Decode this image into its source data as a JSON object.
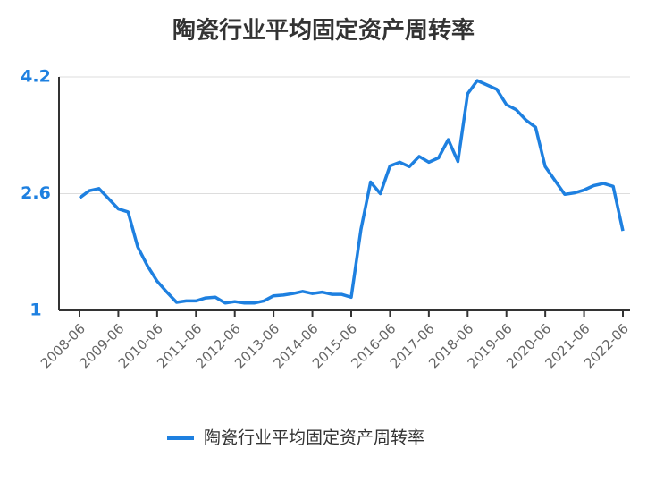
{
  "chart_data": {
    "type": "line",
    "title": "陶瓷行业平均固定资产周转率",
    "categories": [
      "2008-06",
      null,
      null,
      null,
      "2009-06",
      null,
      null,
      null,
      "2010-06",
      null,
      null,
      null,
      "2011-06",
      null,
      null,
      null,
      "2012-06",
      null,
      null,
      null,
      "2013-06",
      null,
      null,
      null,
      "2014-06",
      null,
      null,
      null,
      "2015-06",
      null,
      null,
      null,
      "2016-06",
      null,
      null,
      null,
      "2017-06",
      null,
      null,
      null,
      "2018-06",
      null,
      null,
      null,
      "2019-06",
      null,
      null,
      null,
      "2020-06",
      null,
      null,
      null,
      "2021-06",
      null,
      null,
      null,
      "2022-06"
    ],
    "series": [
      {
        "name": "陶瓷行业平均固定资产周转率",
        "color": "#1e80e0",
        "values": [
          2.54,
          2.64,
          2.67,
          2.53,
          2.39,
          2.35,
          1.87,
          1.61,
          1.4,
          1.25,
          1.11,
          1.13,
          1.13,
          1.17,
          1.18,
          1.1,
          1.12,
          1.1,
          1.1,
          1.13,
          1.2,
          1.21,
          1.23,
          1.26,
          1.23,
          1.25,
          1.22,
          1.22,
          1.18,
          2.11,
          2.76,
          2.6,
          2.98,
          3.03,
          2.97,
          3.11,
          3.03,
          3.09,
          3.34,
          3.04,
          3.97,
          4.15,
          4.09,
          4.03,
          3.82,
          3.75,
          3.61,
          3.51,
          2.97,
          2.78,
          2.59,
          2.61,
          2.65,
          2.71,
          2.74,
          2.7,
          2.09
        ]
      }
    ],
    "ylim": [
      1,
      4.2
    ],
    "yticks": [
      1,
      2.6,
      4.2
    ],
    "grid": true,
    "legend": "bottom"
  }
}
